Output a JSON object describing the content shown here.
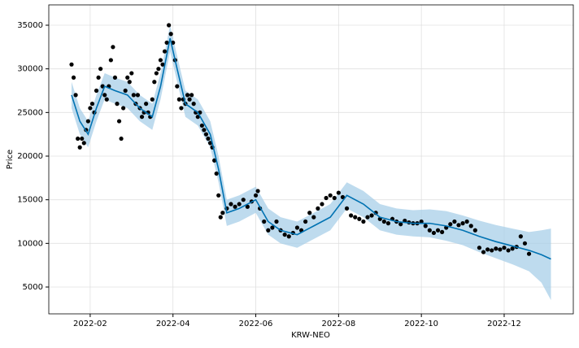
{
  "chart_data": {
    "type": "line",
    "xlabel": "KRW-NEO",
    "ylabel": "Price",
    "grid": true,
    "xlim": [
      0,
      12.67
    ],
    "xticks": [
      {
        "value": 1,
        "label": "2022-02"
      },
      {
        "value": 3,
        "label": "2022-04"
      },
      {
        "value": 5,
        "label": "2022-06"
      },
      {
        "value": 7,
        "label": "2022-08"
      },
      {
        "value": 9,
        "label": "2022-10"
      },
      {
        "value": 11,
        "label": "2022-12"
      }
    ],
    "ylim": [
      1925,
      37330
    ],
    "yticks": [
      5000,
      10000,
      15000,
      20000,
      25000,
      30000,
      35000
    ],
    "observed": {
      "color": "#000000",
      "x": [
        0.55,
        0.6,
        0.65,
        0.7,
        0.75,
        0.8,
        0.85,
        0.9,
        0.95,
        1.0,
        1.05,
        1.1,
        1.15,
        1.2,
        1.25,
        1.3,
        1.35,
        1.4,
        1.45,
        1.5,
        1.55,
        1.6,
        1.65,
        1.7,
        1.75,
        1.8,
        1.85,
        1.9,
        1.95,
        2.0,
        2.05,
        2.1,
        2.15,
        2.2,
        2.25,
        2.3,
        2.35,
        2.4,
        2.45,
        2.5,
        2.55,
        2.6,
        2.65,
        2.7,
        2.75,
        2.8,
        2.85,
        2.9,
        2.95,
        3.0,
        3.05,
        3.1,
        3.15,
        3.2,
        3.25,
        3.3,
        3.35,
        3.4,
        3.45,
        3.5,
        3.55,
        3.6,
        3.65,
        3.7,
        3.75,
        3.8,
        3.85,
        3.9,
        3.95,
        4.0,
        4.05,
        4.1,
        4.15,
        4.2,
        4.3,
        4.4,
        4.5,
        4.6,
        4.7,
        4.8,
        4.9,
        5.0,
        5.05,
        5.1,
        5.2,
        5.3,
        5.4,
        5.5,
        5.6,
        5.7,
        5.8,
        5.9,
        6.0,
        6.1,
        6.2,
        6.3,
        6.4,
        6.5,
        6.6,
        6.7,
        6.8,
        6.9,
        7.0,
        7.1,
        7.2,
        7.3,
        7.4,
        7.5,
        7.6,
        7.7,
        7.8,
        7.9,
        8.0,
        8.1,
        8.2,
        8.3,
        8.4,
        8.5,
        8.6,
        8.7,
        8.8,
        8.9,
        9.0,
        9.1,
        9.2,
        9.3,
        9.4,
        9.5,
        9.6,
        9.7,
        9.8,
        9.9,
        10.0,
        10.1,
        10.2,
        10.3,
        10.4,
        10.5,
        10.6,
        10.7,
        10.8,
        10.9,
        11.0,
        11.1,
        11.2,
        11.3,
        11.4,
        11.5,
        11.6
      ],
      "values": [
        30500,
        29000,
        27000,
        22000,
        21000,
        22000,
        21500,
        23000,
        24000,
        25500,
        26000,
        25000,
        27500,
        29000,
        30000,
        28000,
        27000,
        26500,
        28000,
        31000,
        32500,
        29000,
        26000,
        24000,
        22000,
        25500,
        27500,
        29000,
        28500,
        29500,
        27000,
        26000,
        27000,
        25500,
        24500,
        25000,
        26000,
        25000,
        24500,
        26500,
        28500,
        29500,
        30000,
        31000,
        30500,
        32000,
        33000,
        35000,
        34000,
        33000,
        31000,
        28000,
        26500,
        25500,
        26500,
        26000,
        27000,
        26500,
        27000,
        26000,
        25000,
        24500,
        25000,
        23500,
        23000,
        22500,
        22000,
        21500,
        21000,
        19500,
        18000,
        15500,
        13000,
        13500,
        14000,
        14500,
        14200,
        14500,
        15000,
        14200,
        14800,
        15500,
        16000,
        14000,
        12500,
        11500,
        11800,
        12500,
        11500,
        11000,
        10800,
        11200,
        11800,
        11500,
        12500,
        13500,
        13000,
        14000,
        14500,
        15200,
        15500,
        15200,
        15800,
        15300,
        14000,
        13200,
        13000,
        12800,
        12500,
        13000,
        13200,
        13500,
        12800,
        12500,
        12300,
        12800,
        12500,
        12200,
        12600,
        12400,
        12300,
        12300,
        12500,
        12000,
        11500,
        11200,
        11500,
        11300,
        11800,
        12200,
        12500,
        12100,
        12300,
        12500,
        12000,
        11500,
        9500,
        9000,
        9300,
        9200,
        9400,
        9300,
        9500,
        9200,
        9400,
        9600,
        10800,
        10000,
        8800
      ]
    },
    "forecast": {
      "color": "#0072b2",
      "band_color": "#a8cfe8",
      "x": [
        0.55,
        0.75,
        0.95,
        1.15,
        1.35,
        1.6,
        1.9,
        2.2,
        2.5,
        2.7,
        2.93,
        3.1,
        3.3,
        3.6,
        3.9,
        4.1,
        4.3,
        4.6,
        5.0,
        5.3,
        5.6,
        6.0,
        6.4,
        6.8,
        7.2,
        7.6,
        8.0,
        8.4,
        8.8,
        9.2,
        9.6,
        10.0,
        10.4,
        10.8,
        11.2,
        11.6,
        11.9,
        12.13
      ],
      "values": [
        27000,
        24000,
        22500,
        25500,
        28000,
        27500,
        27000,
        25500,
        24500,
        28000,
        33500,
        30000,
        26000,
        25000,
        22500,
        18500,
        13500,
        14000,
        15000,
        12500,
        11500,
        11000,
        12000,
        13000,
        15500,
        14500,
        13000,
        12500,
        12300,
        12300,
        12000,
        11500,
        10800,
        10200,
        9700,
        9200,
        8700,
        8200
      ],
      "lower": [
        25500,
        22500,
        21000,
        24000,
        26500,
        26000,
        25500,
        24000,
        23000,
        26500,
        32000,
        28500,
        24500,
        23500,
        21000,
        17000,
        12000,
        12500,
        13500,
        11000,
        10000,
        9500,
        10500,
        11500,
        14000,
        13000,
        11500,
        11000,
        10800,
        10700,
        10300,
        9800,
        9000,
        8300,
        7600,
        6800,
        5500,
        3500
      ],
      "upper": [
        28500,
        25500,
        24000,
        27000,
        29500,
        29000,
        28500,
        27000,
        26000,
        29500,
        35000,
        31500,
        27500,
        26500,
        24000,
        20000,
        15000,
        15500,
        16500,
        14000,
        13000,
        12500,
        13500,
        14500,
        17000,
        16000,
        14500,
        14000,
        13800,
        13900,
        13700,
        13200,
        12600,
        12100,
        11700,
        11300,
        11500,
        11700
      ]
    }
  }
}
